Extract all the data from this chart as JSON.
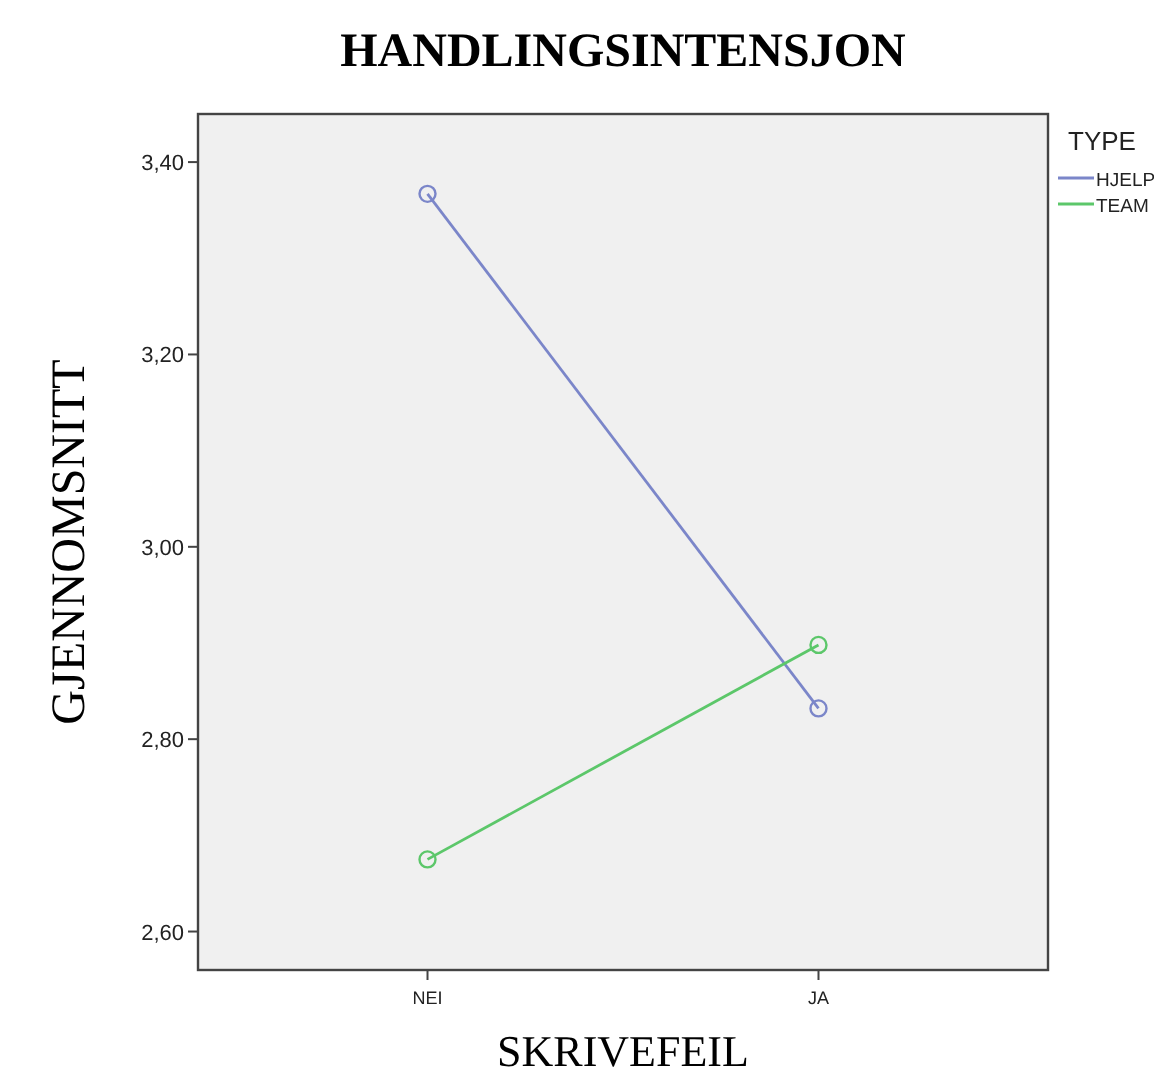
{
  "chart_data": {
    "type": "line",
    "title": "HANDLINGSINTENSJON",
    "xlabel": "SKRIVEFEIL",
    "ylabel": "GJENNOMSNITT",
    "legend_title": "TYPE",
    "categories": [
      "NEI",
      "JA"
    ],
    "series": [
      {
        "name": "HJELP",
        "color": "#7b86c9",
        "values": [
          3.367,
          2.832
        ]
      },
      {
        "name": "TEAM",
        "color": "#5cc76a",
        "values": [
          2.675,
          2.898
        ]
      }
    ],
    "ylim": [
      2.56,
      3.45
    ],
    "yticks": [
      {
        "value": 2.6,
        "label": "2,60"
      },
      {
        "value": 2.8,
        "label": "2,80"
      },
      {
        "value": 3.0,
        "label": "3,00"
      },
      {
        "value": 3.2,
        "label": "3,20"
      },
      {
        "value": 3.4,
        "label": "3,40"
      }
    ],
    "grid": false,
    "legend": "top right",
    "marker": "circle",
    "line_style": "solid"
  }
}
